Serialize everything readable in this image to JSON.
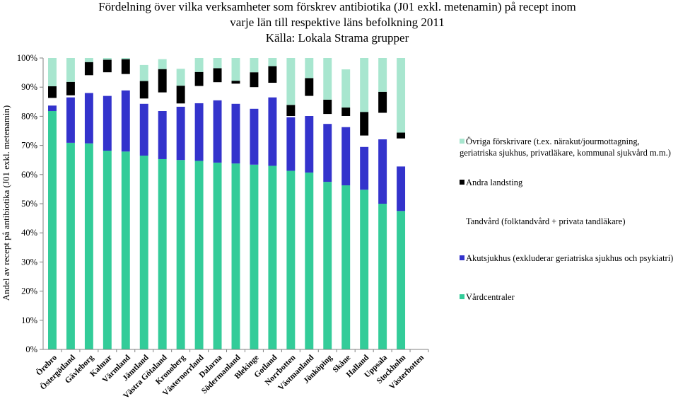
{
  "chart_data": {
    "type": "bar",
    "stacked": true,
    "title_lines": [
      "Fördelning över vilka verksamheter som förskrev antibiotika (J01 exkl. metenamin) på recept inom",
      "varje län till respektive läns befolkning 2011",
      "Källa: Lokala Strama grupper"
    ],
    "ylabel": "Andel av recept på antibiotika (J01 exkl. metenamin)",
    "xlabel": "",
    "ylim": [
      0,
      100
    ],
    "yticks": [
      "0%",
      "10%",
      "20%",
      "30%",
      "40%",
      "50%",
      "60%",
      "70%",
      "80%",
      "90%",
      "100%"
    ],
    "grid": false,
    "legend_position": "right",
    "categories": [
      "Örebro",
      "Östergötland",
      "Gävleborg",
      "Kalmar",
      "Värmland",
      "Jämtland",
      "Västra Götaland",
      "Kronoberg",
      "Västernorrland",
      "Dalarna",
      "Södermanland",
      "Blekinge",
      "Gotland",
      "Norrbotten",
      "Västmanland",
      "Jönköping",
      "Skåne",
      "Halland",
      "Uppsala",
      "Stockholm",
      "Västerbotten"
    ],
    "series": [
      {
        "name": "Vårdcentraler",
        "color": "#33CC99",
        "values": [
          81.8,
          70.9,
          70.7,
          68.2,
          67.9,
          66.5,
          65.3,
          65.0,
          64.7,
          64.1,
          63.8,
          63.4,
          63.0,
          61.3,
          60.7,
          57.5,
          56.3,
          54.8,
          50.0,
          47.5,
          0
        ]
      },
      {
        "name": "Akutsjukhus (exkluderar geriatriska sjukhus och psykiatri)",
        "color": "#3333CC",
        "values": [
          1.9,
          15.6,
          17.3,
          18.8,
          21.0,
          17.8,
          16.5,
          18.3,
          19.8,
          21.4,
          20.5,
          19.2,
          23.5,
          18.4,
          19.4,
          19.9,
          20.0,
          14.7,
          22.1,
          15.3,
          0
        ]
      },
      {
        "name": "Tandvård (folktandvård + privata tandläkare)",
        "color": "#FFFFFF",
        "values": [
          2.6,
          0.7,
          6.1,
          8.1,
          5.6,
          1.8,
          6.4,
          1.1,
          5.9,
          6.2,
          6.9,
          7.4,
          5.0,
          0.4,
          6.9,
          3.4,
          3.8,
          3.9,
          9.1,
          9.6,
          0
        ]
      },
      {
        "name": "Andra landsting",
        "color": "#000000",
        "values": [
          4.0,
          4.6,
          4.5,
          4.3,
          5.1,
          6.0,
          8.0,
          6.1,
          4.8,
          4.8,
          1.0,
          5.1,
          5.7,
          3.8,
          6.1,
          4.9,
          2.9,
          8.1,
          7.2,
          2.0,
          0
        ]
      },
      {
        "name": "Övriga förskrivare (t.ex. närakut/jourmottagning, geriatriska sjukhus, privatläkare, kommunal sjukvård m.m.)",
        "color": "#A8E6CF",
        "values": [
          9.7,
          8.2,
          1.4,
          0.6,
          0.4,
          5.5,
          3.4,
          5.8,
          4.8,
          3.5,
          7.8,
          4.9,
          2.8,
          16.1,
          6.9,
          14.3,
          13.1,
          18.5,
          11.6,
          25.6,
          0
        ]
      }
    ]
  }
}
